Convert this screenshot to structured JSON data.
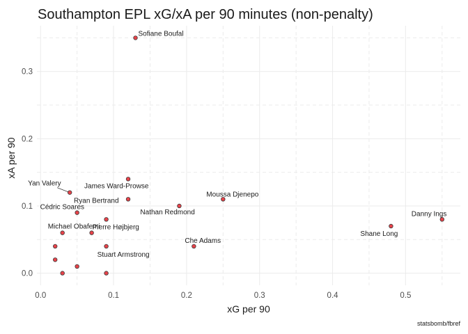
{
  "chart_data": {
    "type": "scatter",
    "title": "Southampton EPL xG/xA per 90 minutes (non-penalty)",
    "xlabel": "xG per 90",
    "ylabel": "xA per 90",
    "caption": "statsbomb/fbref",
    "xlim": [
      -0.005,
      0.575
    ],
    "ylim": [
      -0.018,
      0.368
    ],
    "x_ticks": [
      0.0,
      0.1,
      0.2,
      0.3,
      0.4,
      0.5
    ],
    "x_tick_labels": [
      "0.0",
      "0.1",
      "0.2",
      "0.3",
      "0.4",
      "0.5"
    ],
    "y_ticks": [
      0.0,
      0.1,
      0.2,
      0.3
    ],
    "y_tick_labels": [
      "0.0",
      "0.1",
      "0.2",
      "0.3"
    ],
    "grid": true,
    "point_color": "#e8434a",
    "points": [
      {
        "name": "Sofiane Boufal",
        "x": 0.13,
        "y": 0.35
      },
      {
        "name": "Yan Valery",
        "x": 0.04,
        "y": 0.12
      },
      {
        "name": "James Ward-Prowse",
        "x": 0.12,
        "y": 0.14
      },
      {
        "name": "Ryan Bertrand",
        "x": 0.12,
        "y": 0.11
      },
      {
        "name": "Moussa Djenepo",
        "x": 0.25,
        "y": 0.11
      },
      {
        "name": "Cédric Soares",
        "x": 0.05,
        "y": 0.09
      },
      {
        "name": "Nathan Redmond",
        "x": 0.19,
        "y": 0.1
      },
      {
        "name": "Danny Ings",
        "x": 0.55,
        "y": 0.08
      },
      {
        "name": "Shane Long",
        "x": 0.48,
        "y": 0.07
      },
      {
        "name": "Pierre Højbjerg",
        "x": 0.07,
        "y": 0.06
      },
      {
        "name": "Michael Obafemi",
        "x": 0.03,
        "y": 0.06
      },
      {
        "name": "Che Adams",
        "x": 0.21,
        "y": 0.04
      },
      {
        "name": "Stuart Armstrong",
        "x": 0.09,
        "y": 0.04
      },
      {
        "name": "",
        "x": 0.09,
        "y": 0.08
      },
      {
        "name": "",
        "x": 0.02,
        "y": 0.04
      },
      {
        "name": "",
        "x": 0.02,
        "y": 0.02
      },
      {
        "name": "",
        "x": 0.05,
        "y": 0.01
      },
      {
        "name": "",
        "x": 0.03,
        "y": 0.0
      },
      {
        "name": "",
        "x": 0.09,
        "y": 0.0
      }
    ]
  }
}
